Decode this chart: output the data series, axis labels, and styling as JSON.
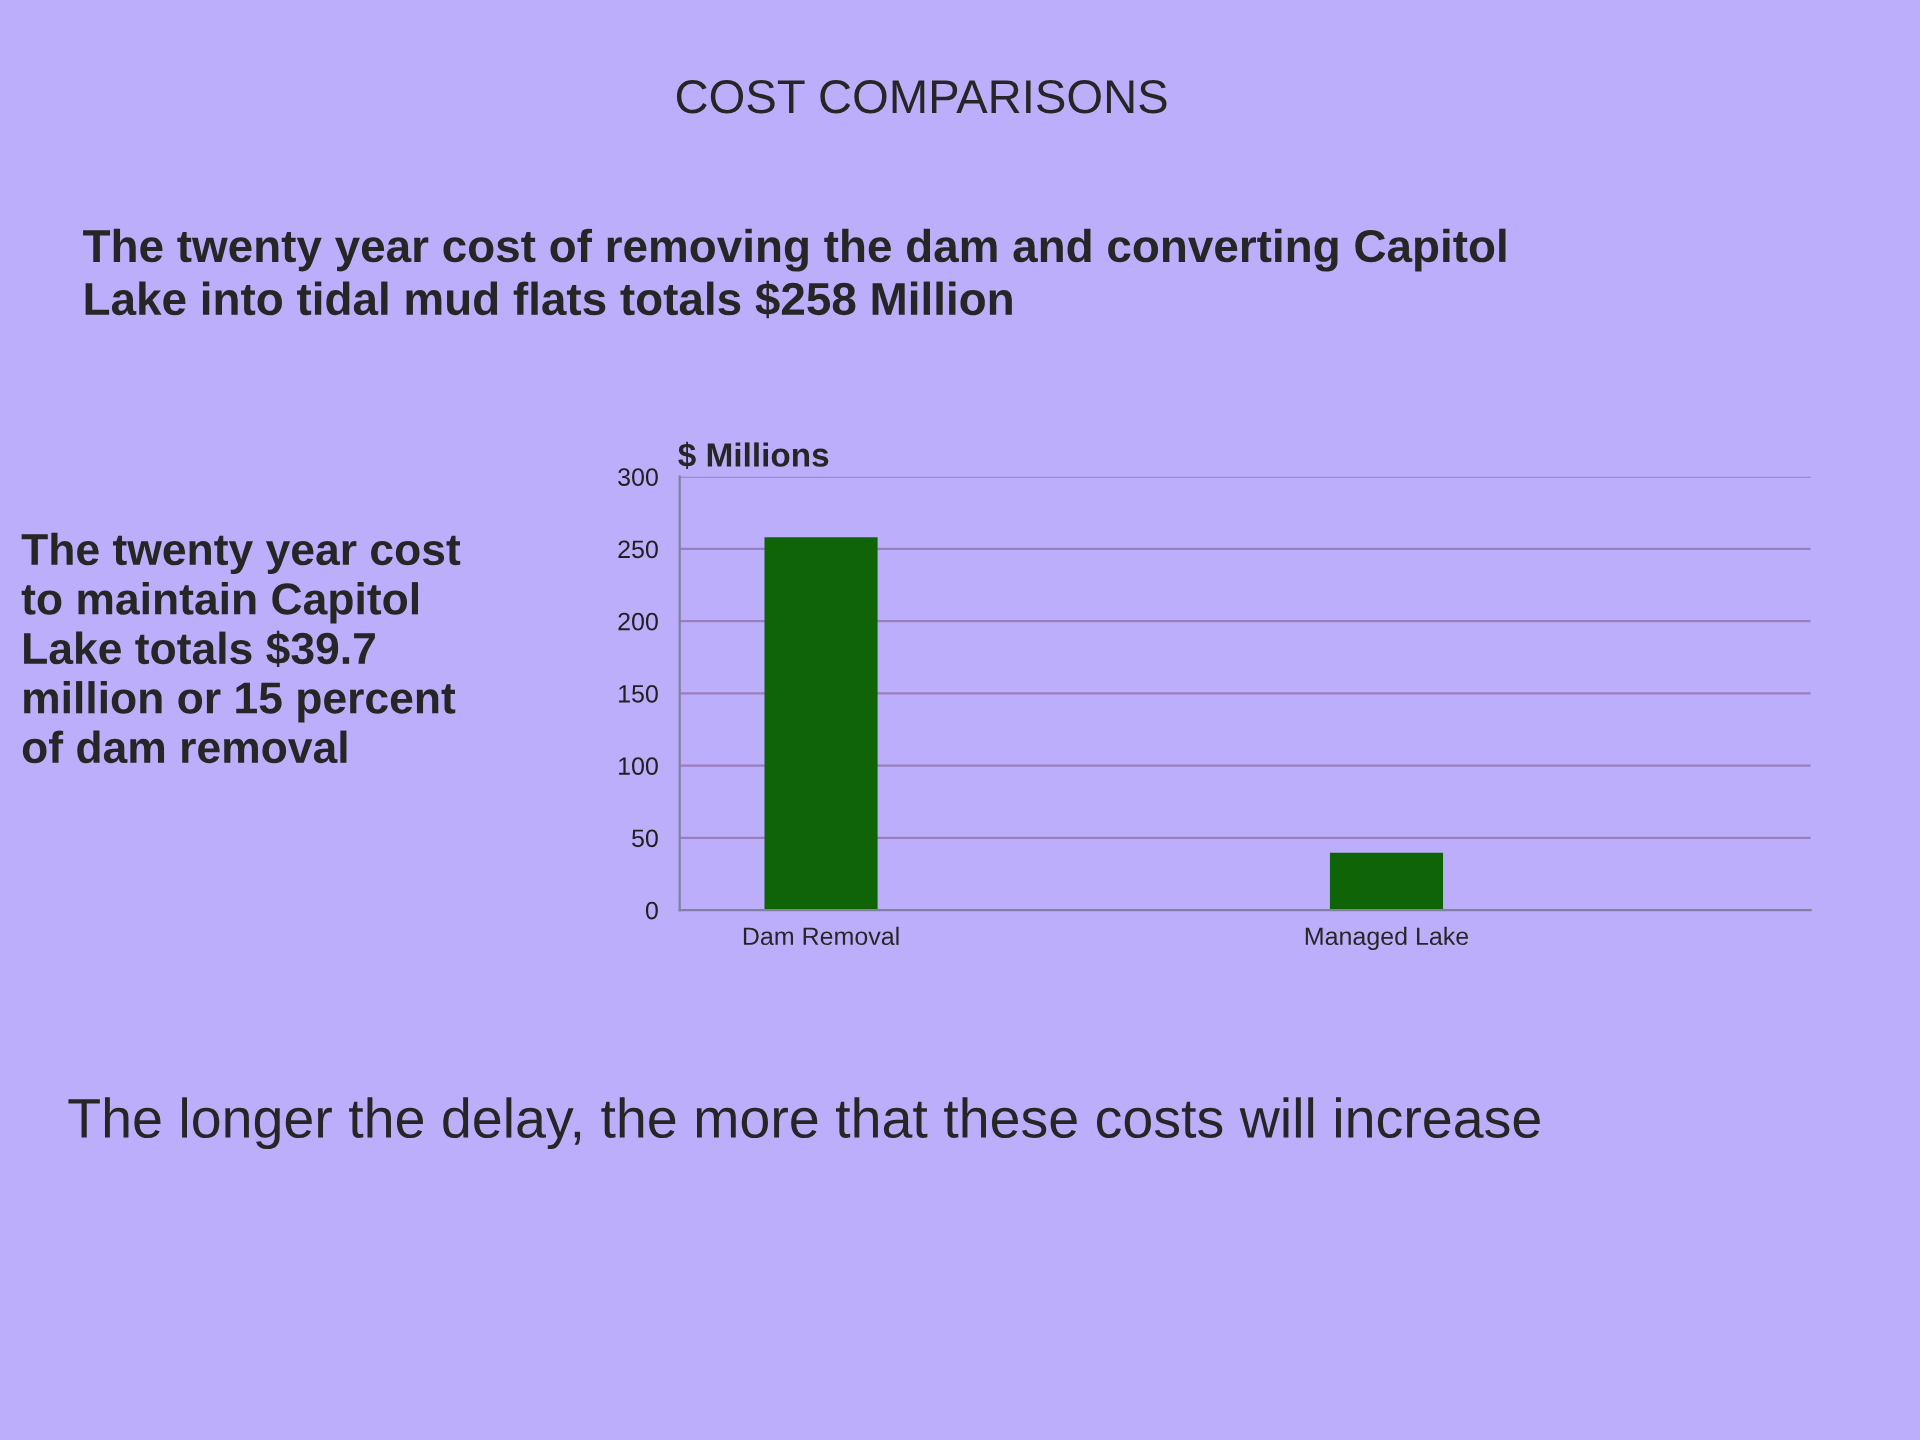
{
  "chart_data": {
    "type": "bar",
    "title": "COST COMPARISONS",
    "subtitle": "The twenty year cost of removing the dam and converting Capitol\nLake into tidal mud flats totals $258 Million",
    "ylabel": "$ Millions",
    "categories": [
      "Dam Removal",
      null,
      "Managed Lake",
      null
    ],
    "values": [
      258,
      null,
      39.7,
      null
    ],
    "color": "#0f6408",
    "ylim": [
      0,
      300
    ],
    "yticks": [
      0,
      50,
      100,
      150,
      200,
      250,
      300
    ],
    "grid": "y",
    "legend": false,
    "annotations": [
      "The twenty year cost\nto maintain Capitol\nLake totals $39.7\nmillion or 15 percent\nof dam removal",
      "The longer the delay, the more that these costs will increase"
    ]
  }
}
